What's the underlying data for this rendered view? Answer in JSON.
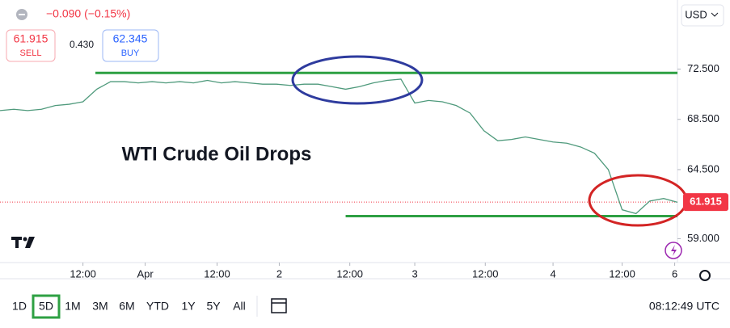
{
  "chart_data": {
    "type": "line",
    "annotation": "WTI Crude Oil Drops",
    "x": [
      0,
      1,
      2,
      3,
      4,
      5,
      6,
      7,
      8,
      9,
      10,
      11,
      12,
      13,
      14,
      15,
      16,
      17,
      18,
      19,
      20,
      21,
      22,
      23,
      24,
      25,
      26,
      27,
      28,
      29,
      30,
      31,
      32,
      33,
      34,
      35,
      36,
      37,
      38,
      39,
      40,
      41,
      42,
      43,
      44,
      45,
      46,
      47,
      48,
      49
    ],
    "series": [
      {
        "color": "#4f9a7c",
        "values": [
          69.2,
          69.3,
          69.2,
          69.3,
          69.6,
          69.7,
          69.9,
          70.9,
          71.5,
          71.5,
          71.4,
          71.5,
          71.4,
          71.5,
          71.4,
          71.6,
          71.4,
          71.5,
          71.4,
          71.3,
          71.3,
          71.2,
          71.3,
          71.3,
          71.1,
          70.9,
          71.1,
          71.4,
          71.6,
          71.7,
          69.8,
          70.0,
          69.9,
          69.6,
          69.0,
          67.6,
          66.8,
          66.9,
          67.1,
          66.9,
          66.7,
          66.6,
          66.3,
          65.8,
          64.5,
          61.3,
          61.0,
          62.0,
          62.2,
          61.9
        ]
      }
    ],
    "last_price": 61.915,
    "last_price_color": "#f23645",
    "levels": [
      {
        "value": 72.2,
        "from": 6.9,
        "color": "#2ea043"
      },
      {
        "value": 60.8,
        "from": 25.0,
        "color": "#2ea043"
      }
    ],
    "xlim": [
      0,
      49
    ],
    "ylim": [
      57.1,
      78.0
    ],
    "xticks": [
      {
        "value": 6,
        "label": "12:00"
      },
      {
        "value": 10.5,
        "label": "Apr"
      },
      {
        "value": 15.7,
        "label": "12:00"
      },
      {
        "value": 20.2,
        "label": "2"
      },
      {
        "value": 25.3,
        "label": "12:00"
      },
      {
        "value": 30,
        "label": "3"
      },
      {
        "value": 35.1,
        "label": "12:00"
      },
      {
        "value": 40,
        "label": "4"
      },
      {
        "value": 45,
        "label": "12:00"
      },
      {
        "value": 48.8,
        "label": "6"
      }
    ],
    "yticks": [
      {
        "value": 72.5,
        "label": "72.500"
      },
      {
        "value": 68.5,
        "label": "68.500"
      },
      {
        "value": 64.5,
        "label": "64.500"
      },
      {
        "value": 59,
        "label": "59.000"
      }
    ]
  },
  "header": {
    "change": "−0.090 (−0.15%)",
    "sell_price": "61.915",
    "sell_label": "SELL",
    "spread": "0.430",
    "buy_price": "62.345",
    "buy_label": "BUY",
    "currency": "USD"
  },
  "toolbar": {
    "ranges": [
      "1D",
      "5D",
      "1M",
      "3M",
      "6M",
      "YTD",
      "1Y",
      "5Y",
      "All"
    ],
    "time": "08:12:49 UTC"
  }
}
